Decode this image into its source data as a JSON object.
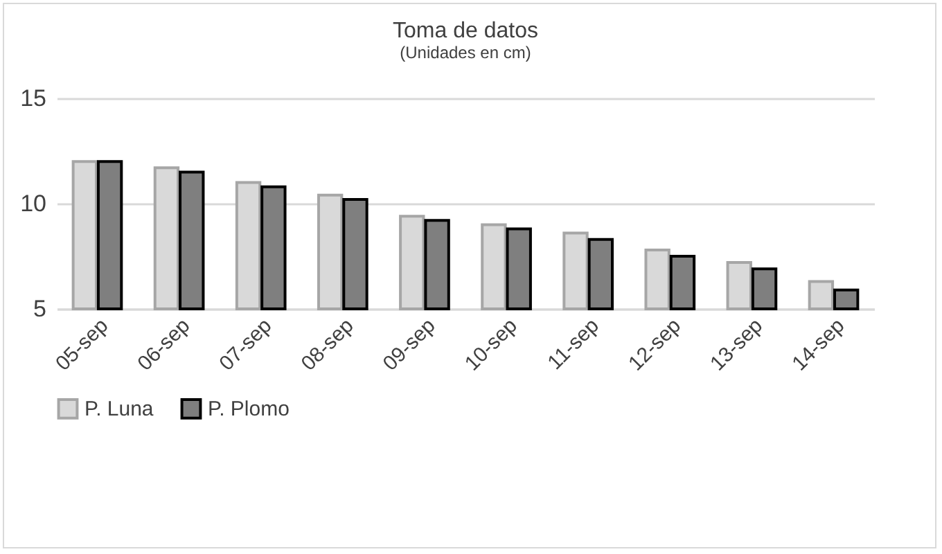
{
  "chart_data": {
    "type": "bar",
    "title": "Toma de datos",
    "subtitle": "(Unidades en cm)",
    "categories": [
      "05-sep",
      "06-sep",
      "07-sep",
      "08-sep",
      "09-sep",
      "10-sep",
      "11-sep",
      "12-sep",
      "13-sep",
      "14-sep"
    ],
    "series": [
      {
        "name": "P. Luna",
        "color": "#d9d9d9",
        "values": [
          12.0,
          11.7,
          11.0,
          10.4,
          9.4,
          9.0,
          8.6,
          7.8,
          7.2,
          6.3
        ]
      },
      {
        "name": "P. Plomo",
        "color": "#7f7f7f",
        "values": [
          12.0,
          11.5,
          10.8,
          10.2,
          9.2,
          8.8,
          8.3,
          7.5,
          6.9,
          5.9
        ]
      }
    ],
    "ylim": [
      5,
      15
    ],
    "yticks": [
      5,
      10,
      15
    ],
    "grid": "y",
    "legend": "bottom"
  }
}
